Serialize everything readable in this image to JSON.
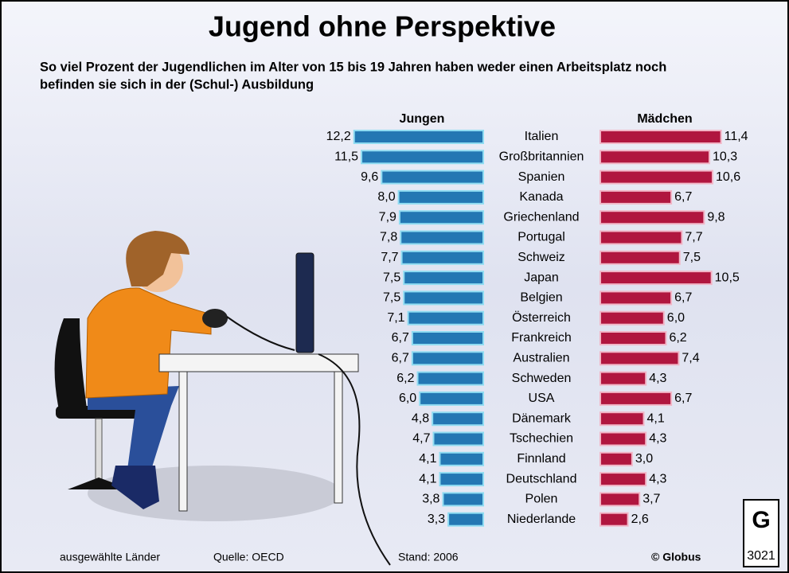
{
  "chart_data": {
    "type": "bar",
    "title": "Jugend ohne Perspektive",
    "subtitle": [
      "So viel Prozent der Jugendlichen im Alter von 15 bis 19 Jahren haben weder einen Arbeitsplatz noch",
      "befinden sie sich in der (Schul-) Ausbildung"
    ],
    "categories": [
      "Italien",
      "Großbritannien",
      "Spanien",
      "Kanada",
      "Griechenland",
      "Portugal",
      "Schweiz",
      "Japan",
      "Belgien",
      "Österreich",
      "Frankreich",
      "Australien",
      "Schweden",
      "USA",
      "Dänemark",
      "Tschechien",
      "Finnland",
      "Deutschland",
      "Polen",
      "Niederlande"
    ],
    "series": [
      {
        "name": "Jungen",
        "color": "#2477b3",
        "values": [
          12.2,
          11.5,
          9.6,
          8.0,
          7.9,
          7.8,
          7.7,
          7.5,
          7.5,
          7.1,
          6.7,
          6.7,
          6.2,
          6.0,
          4.8,
          4.7,
          4.1,
          4.1,
          3.8,
          3.3
        ],
        "value_labels": [
          "12,2",
          "11,5",
          "9,6",
          "8,0",
          "7,9",
          "7,8",
          "7,7",
          "7,5",
          "7,5",
          "7,1",
          "6,7",
          "6,7",
          "6,2",
          "6,0",
          "4,8",
          "4,7",
          "4,1",
          "4,1",
          "3,8",
          "3,3"
        ]
      },
      {
        "name": "Mädchen",
        "color": "#b0163f",
        "values": [
          11.4,
          10.3,
          10.6,
          6.7,
          9.8,
          7.7,
          7.5,
          10.5,
          6.7,
          6.0,
          6.2,
          7.4,
          4.3,
          6.7,
          4.1,
          4.3,
          3.0,
          4.3,
          3.7,
          2.6
        ],
        "value_labels": [
          "11,4",
          "10,3",
          "10,6",
          "6,7",
          "9,8",
          "7,7",
          "7,5",
          "10,5",
          "6,7",
          "6,0",
          "6,2",
          "7,4",
          "4,3",
          "6,7",
          "4,1",
          "4,3",
          "3,0",
          "4,3",
          "3,7",
          "2,6"
        ]
      }
    ],
    "annotations": [
      "ausgewählte Länder",
      "Quelle: OECD",
      "Stand: 2006",
      "© Globus",
      "3021"
    ]
  }
}
